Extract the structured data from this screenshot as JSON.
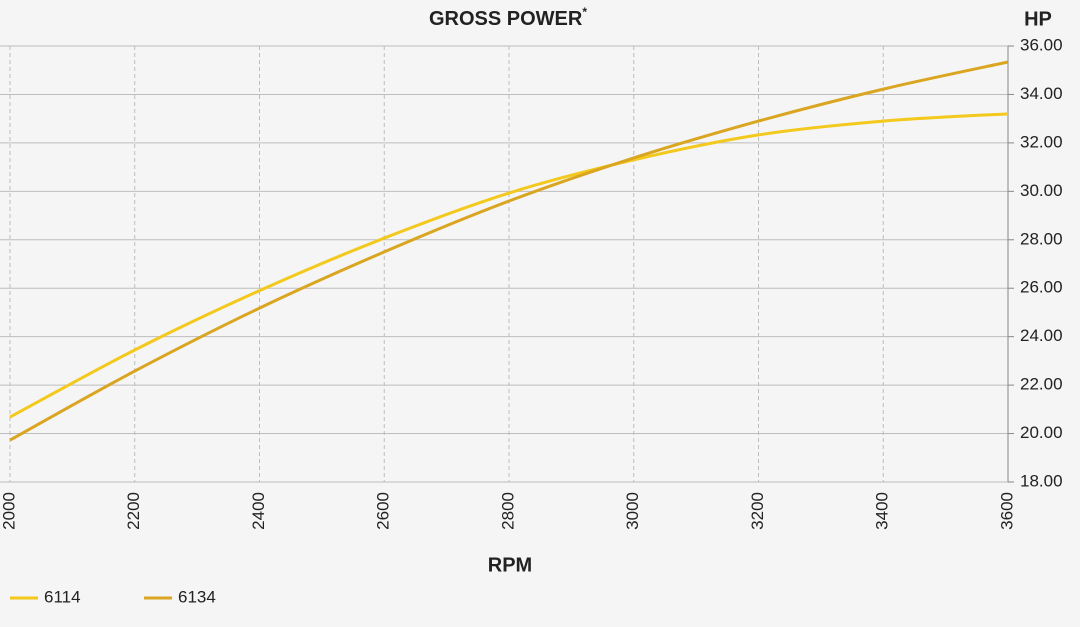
{
  "chart_data": {
    "type": "line",
    "title": "GROSS POWER",
    "title_note": "*",
    "x_label": "RPM",
    "y_label": "HP",
    "x": [
      2000,
      2200,
      2400,
      2600,
      2800,
      3000,
      3200,
      3400,
      3600
    ],
    "series": [
      {
        "name": "6114",
        "color": "#f2c91c",
        "values": [
          20.68,
          23.45,
          25.9,
          28.07,
          29.93,
          31.3,
          32.33,
          32.9,
          33.2
        ]
      },
      {
        "name": "6134",
        "color": "#daa520",
        "values": [
          19.73,
          22.58,
          25.18,
          27.5,
          29.6,
          31.38,
          32.9,
          34.22,
          35.34
        ]
      }
    ],
    "xlim": [
      2000,
      3600
    ],
    "xticks": [
      2000,
      2200,
      2400,
      2600,
      2800,
      3000,
      3200,
      3400,
      3600
    ],
    "ylim": [
      18,
      36
    ],
    "yticks": [
      {
        "value": 18,
        "label": "18.00"
      },
      {
        "value": 20,
        "label": "20.00"
      },
      {
        "value": 22,
        "label": "22.00"
      },
      {
        "value": 24,
        "label": "24.00"
      },
      {
        "value": 26,
        "label": "26.00"
      },
      {
        "value": 28,
        "label": "28.00"
      },
      {
        "value": 30,
        "label": "30.00"
      },
      {
        "value": 32,
        "label": "32.00"
      },
      {
        "value": 34,
        "label": "34.00"
      },
      {
        "value": 36,
        "label": "36.00"
      }
    ],
    "grid": true
  }
}
